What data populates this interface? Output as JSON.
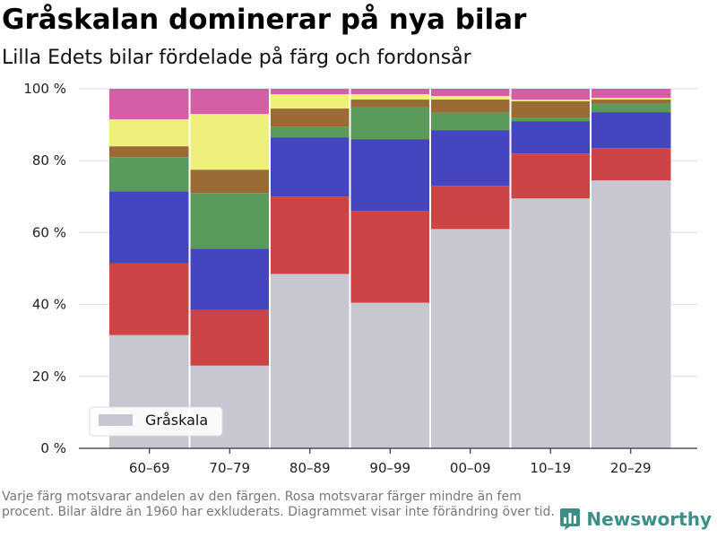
{
  "title": "Gråskalan dominerar på nya bilar",
  "subtitle": "Lilla Edets bilar fördelade på färg och fordonsår",
  "footnote": "Varje färg motsvarar andelen av den färgen. Rosa motsvarar färger mindre än fem procent. Bilar äldre än 1960 har exkluderats. Diagrammet visar inte förändring över tid.",
  "brand": "Newsworthy",
  "chart_data": {
    "type": "bar",
    "stacked": true,
    "categories": [
      "60–69",
      "70–79",
      "80–89",
      "90–99",
      "00–09",
      "10–19",
      "20–29"
    ],
    "y_ticks": [
      "0 %",
      "20 %",
      "40 %",
      "60 %",
      "80 %",
      "100 %"
    ],
    "ylim": [
      0,
      100
    ],
    "grid": true,
    "legend_position": "bottom-left",
    "legend": [
      "Gråskala"
    ],
    "series": [
      {
        "name": "Gråskala",
        "color": "#c8c7d1",
        "values": [
          31.5,
          23,
          48.5,
          40.5,
          61,
          69.5,
          74.5
        ]
      },
      {
        "color": "#cc4444",
        "values": [
          20,
          15.5,
          21.5,
          25.5,
          12,
          12.5,
          9
        ]
      },
      {
        "color": "#4545c0",
        "values": [
          20,
          17,
          16.5,
          20,
          15.5,
          9,
          10
        ]
      },
      {
        "color": "#5a9a5a",
        "values": [
          9.5,
          15.5,
          3,
          9,
          5,
          1,
          2.5
        ]
      },
      {
        "color": "#9b6b35",
        "values": [
          3,
          6.5,
          5,
          2,
          3.5,
          4.5,
          1
        ]
      },
      {
        "color": "#eef07a",
        "values": [
          7.5,
          15.5,
          4,
          1.5,
          1,
          0.5,
          0.5
        ]
      },
      {
        "color": "#d55fa7",
        "values": [
          8.5,
          7,
          1.5,
          1.5,
          2,
          3,
          2.5
        ]
      }
    ]
  }
}
